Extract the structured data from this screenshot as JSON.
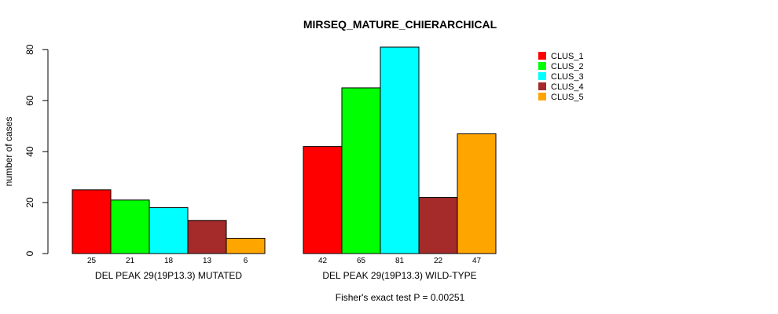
{
  "chart_data": {
    "type": "bar",
    "title": "MIRSEQ_MATURE_CHIERARCHICAL",
    "ylabel": "number of cases",
    "xlabel": "",
    "ylim": [
      0,
      81
    ],
    "yticks": [
      0,
      20,
      40,
      60,
      80
    ],
    "grid": false,
    "legend_position": "top-right",
    "categories": [
      "DEL PEAK 29(19P13.3) MUTATED",
      "DEL PEAK 29(19P13.3) WILD-TYPE"
    ],
    "series": [
      {
        "name": "CLUS_1",
        "color": "#ff0000",
        "values": [
          25,
          42
        ]
      },
      {
        "name": "CLUS_2",
        "color": "#00ff00",
        "values": [
          21,
          65
        ]
      },
      {
        "name": "CLUS_3",
        "color": "#00ffff",
        "values": [
          18,
          81
        ]
      },
      {
        "name": "CLUS_4",
        "color": "#a52a2a",
        "values": [
          13,
          22
        ]
      },
      {
        "name": "CLUS_5",
        "color": "#ffa500",
        "values": [
          6,
          47
        ]
      }
    ],
    "footnote": "Fisher's exact test P = 0.00251"
  }
}
